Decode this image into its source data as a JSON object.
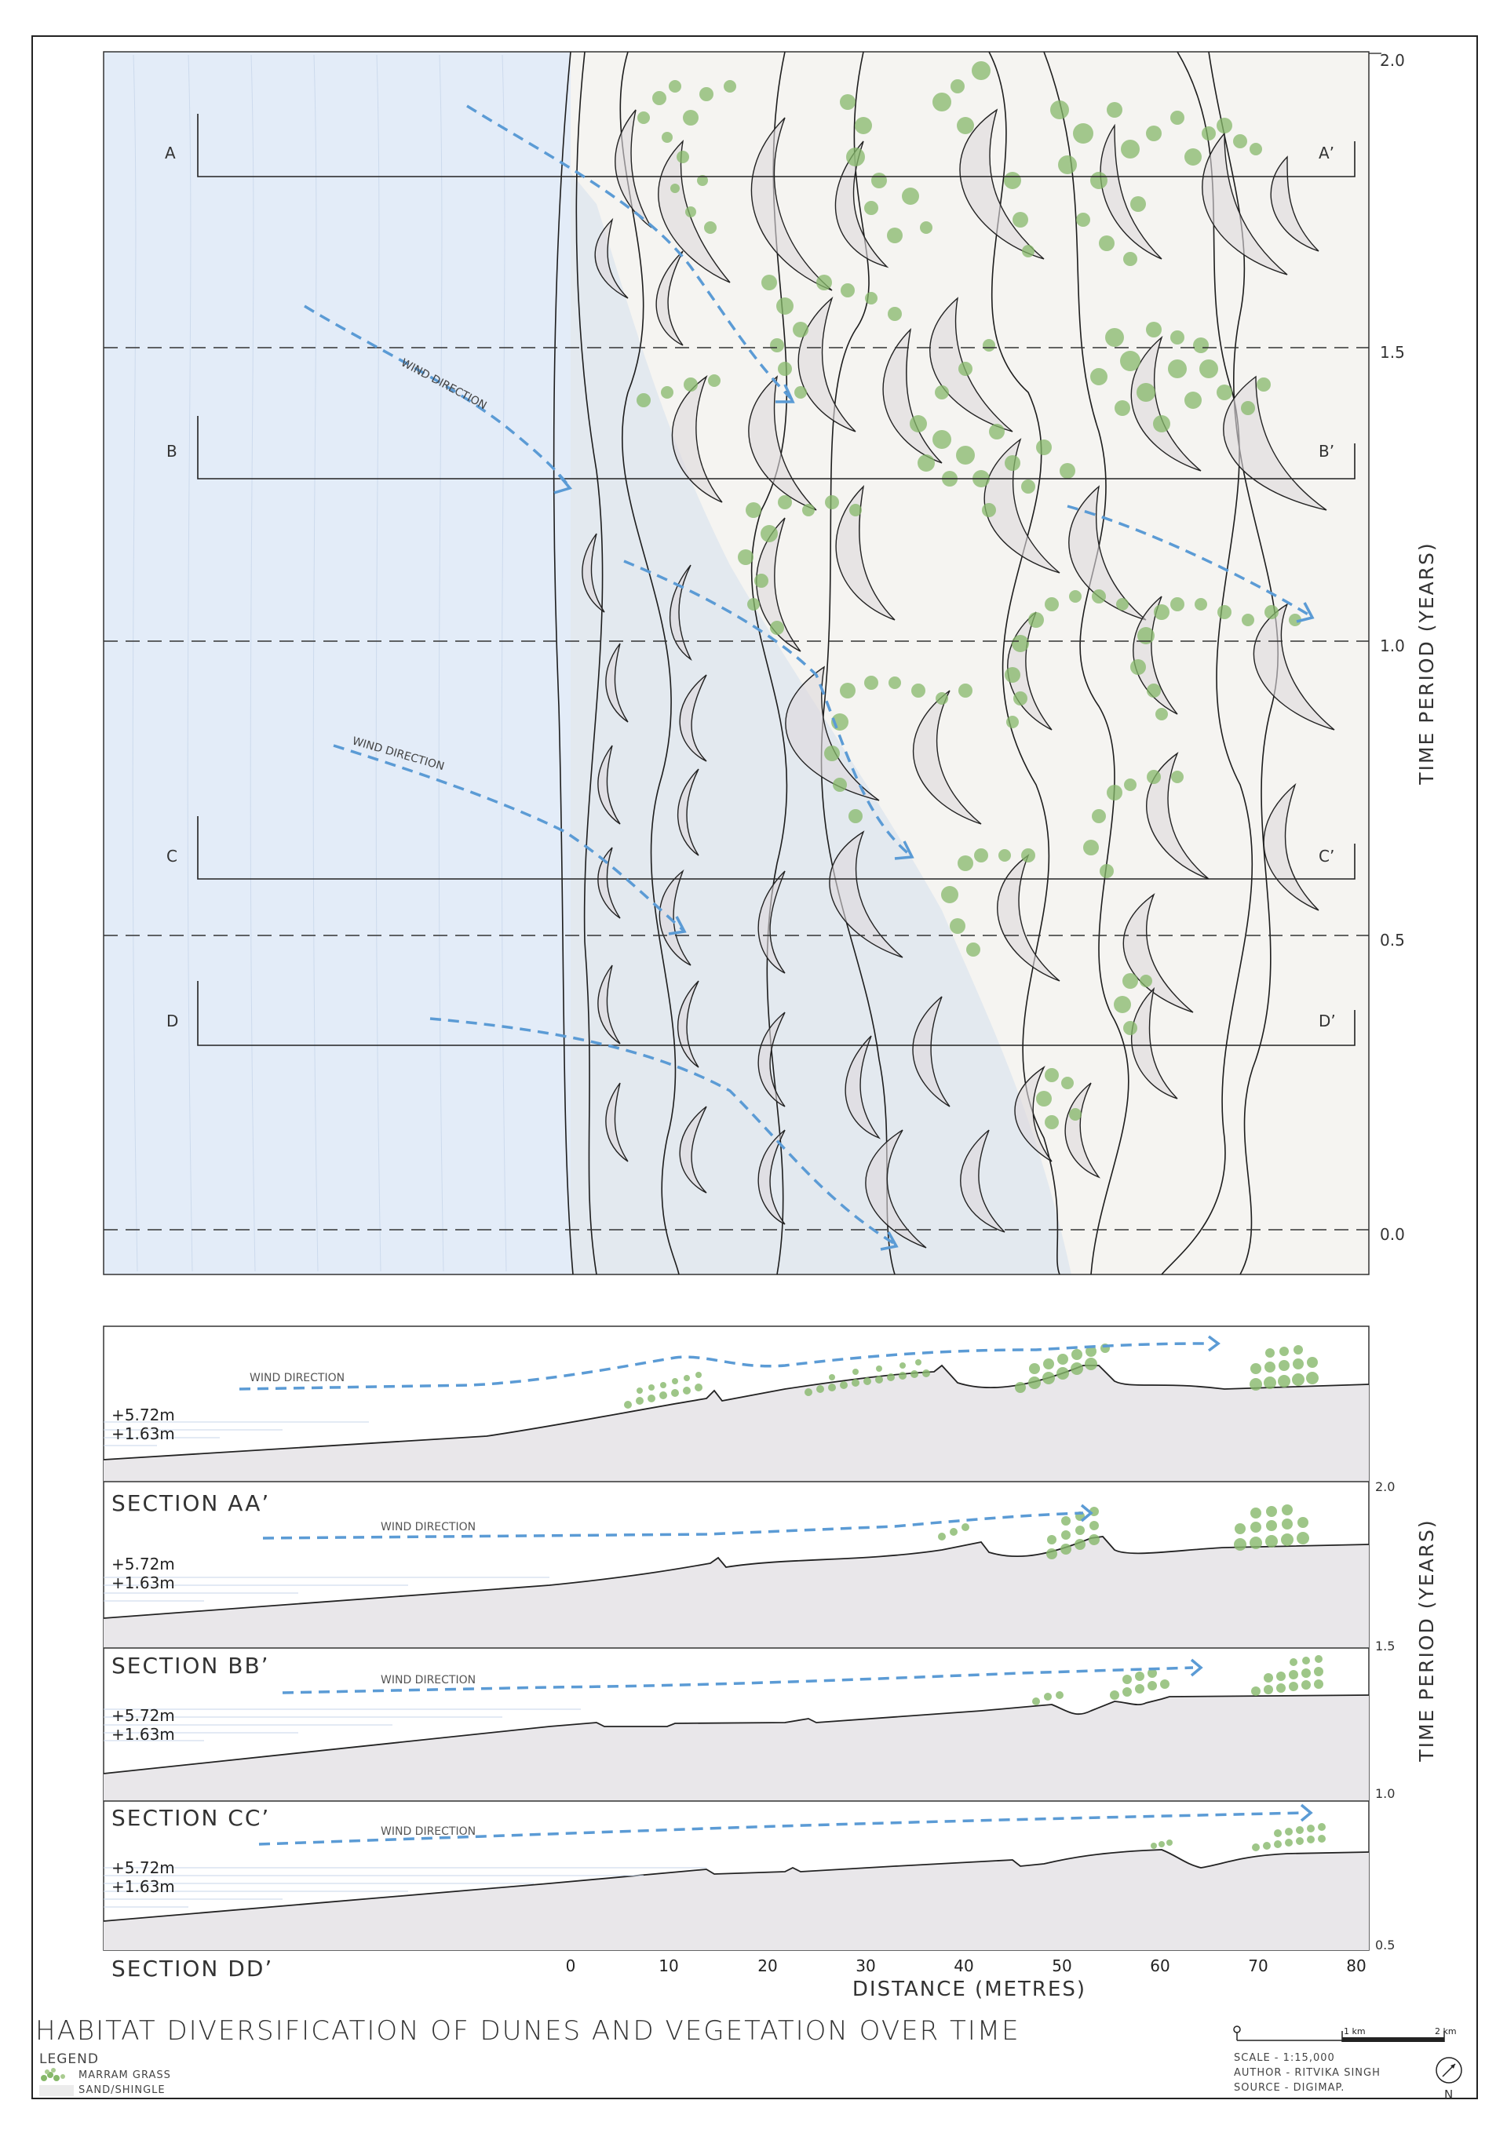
{
  "plan": {
    "sections": [
      {
        "start": "A",
        "end": "A’"
      },
      {
        "start": "B",
        "end": "B’"
      },
      {
        "start": "C",
        "end": "C’"
      },
      {
        "start": "D",
        "end": "D’"
      }
    ],
    "time_ticks": [
      "2.0",
      "1.5",
      "1.0",
      "0.5",
      "0.0"
    ],
    "time_axis_label": "TIME PERIOD (YEARS)",
    "wind_labels": [
      "WIND DIRECTION",
      "WIND DIRECTION"
    ]
  },
  "sections_panel": {
    "elevation_high": "+5.72m",
    "elevation_low": "+1.63m",
    "wind_label": "WIND DIRECTION",
    "titles": [
      "SECTION AA’",
      "SECTION BB’",
      "SECTION CC’",
      "SECTION DD’"
    ],
    "time_ticks": [
      "2.0",
      "1.5",
      "1.0",
      "0.5"
    ],
    "time_axis_label": "TIME PERIOD (YEARS)",
    "distance_ticks": [
      "0",
      "10",
      "20",
      "30",
      "40",
      "50",
      "60",
      "70",
      "80"
    ],
    "distance_axis_label": "DISTANCE (METRES)"
  },
  "title": "HABITAT DIVERSIFICATION OF DUNES AND VEGETATION OVER TIME",
  "legend": {
    "title": "LEGEND",
    "items": [
      "MARRAM GRASS",
      "SAND/SHINGLE"
    ]
  },
  "scale_bar": {
    "km1": "1 km",
    "km2": "2 km"
  },
  "info": {
    "scale": "SCALE - 1:15,000",
    "author": "AUTHOR - RITVIKA SINGH",
    "source": "SOURCE - DIGIMAP."
  },
  "north": "N",
  "colors": {
    "sea": "#e3ecf8",
    "grass": "#86b86a",
    "wind": "#5b9bd5",
    "sand": "#ececec"
  }
}
